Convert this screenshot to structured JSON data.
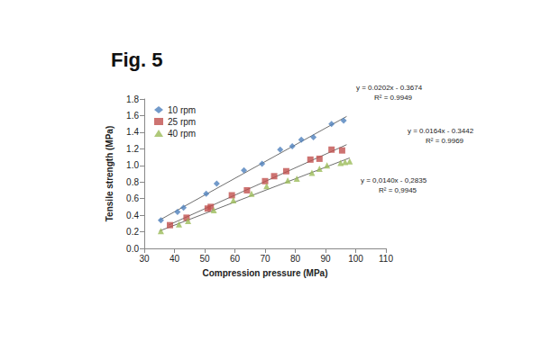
{
  "chart_data": {
    "type": "scatter",
    "title": "Fig. 5",
    "x_label": "Compression pressure (MPa)",
    "y_label": "Tensile strength (MPa)",
    "xlim": [
      30,
      110
    ],
    "xticks": [
      30,
      40,
      50,
      60,
      70,
      80,
      90,
      100,
      110
    ],
    "ylim": [
      0,
      1.8
    ],
    "yticks": [
      {
        "value": 0,
        "label": "0.0"
      },
      {
        "value": 0.2,
        "label": "0.2"
      },
      {
        "value": 0.4,
        "label": "0.4"
      },
      {
        "value": 0.6,
        "label": "0.6"
      },
      {
        "value": 0.8,
        "label": "0.8"
      },
      {
        "value": 1,
        "label": "1.0"
      },
      {
        "value": 1.2,
        "label": "1.2"
      },
      {
        "value": 1.4,
        "label": "1.4"
      },
      {
        "value": 1.6,
        "label": "1.6"
      },
      {
        "value": 1.8,
        "label": "1.8"
      }
    ],
    "grid": false,
    "legend": "top-left",
    "series": [
      {
        "name": "10 rpm",
        "color": "#4f81bd",
        "marker": "diamond",
        "x": [
          35.5,
          41,
          43,
          50.5,
          54,
          63,
          69,
          75,
          79,
          82,
          86,
          92,
          96
        ],
        "values": [
          0.34,
          0.44,
          0.49,
          0.66,
          0.78,
          0.94,
          1.02,
          1.19,
          1.23,
          1.31,
          1.34,
          1.5,
          1.54
        ],
        "trendline": {
          "x": [
            35,
            97
          ],
          "values": [
            0.34,
            1.59
          ]
        },
        "annotation": [
          "y = 0.0202x - 0.3674",
          "R² = 0.9949"
        ]
      },
      {
        "name": "25 rpm",
        "color": "#c0504d",
        "marker": "square",
        "x": [
          38.5,
          44,
          51,
          52,
          59,
          64,
          70,
          73,
          77,
          85,
          88,
          92,
          95.5
        ],
        "values": [
          0.28,
          0.37,
          0.48,
          0.5,
          0.64,
          0.7,
          0.81,
          0.87,
          0.93,
          1.07,
          1.08,
          1.19,
          1.18
        ],
        "trendline": {
          "x": [
            38,
            97
          ],
          "values": [
            0.28,
            1.25
          ]
        },
        "annotation": [
          "y = 0.0164x - 0.3442",
          "R² = 0.9969"
        ]
      },
      {
        "name": "40 rpm",
        "color": "#9bbb59",
        "marker": "triangle",
        "x": [
          35.5,
          41.5,
          44.5,
          53,
          59.5,
          65.5,
          70.5,
          77.5,
          80.5,
          85.5,
          88,
          90.5,
          95,
          96.5,
          98
        ],
        "values": [
          0.21,
          0.29,
          0.33,
          0.46,
          0.58,
          0.66,
          0.75,
          0.82,
          0.84,
          0.91,
          0.96,
          1.0,
          1.03,
          1.04,
          1.05
        ],
        "trendline": {
          "x": [
            35,
            98
          ],
          "values": [
            0.21,
            1.09
          ]
        },
        "annotation": [
          "y = 0,0140x - 0,2835",
          "R² = 0,9945"
        ]
      }
    ]
  }
}
